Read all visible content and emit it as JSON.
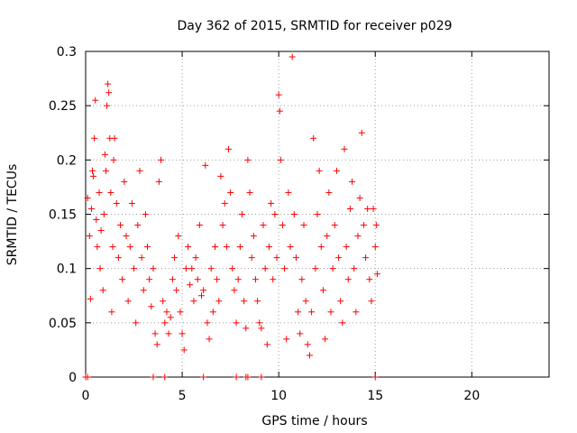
{
  "chart_data": {
    "type": "scatter",
    "title": "Day 362 of 2015, SRMTID for receiver p029",
    "xlabel": "GPS time / hours",
    "ylabel": "SRMTID / TECUs",
    "xlim": [
      0,
      24
    ],
    "ylim": [
      0,
      0.3
    ],
    "xticks": [
      0,
      5,
      10,
      15,
      20
    ],
    "yticks": [
      0,
      0.05,
      0.1,
      0.15,
      0.2,
      0.25,
      0.3
    ],
    "xtick_labels": [
      "0",
      "5",
      "10",
      "15",
      "20"
    ],
    "ytick_labels": [
      "0",
      "0.05",
      "0.1",
      "0.15",
      "0.2",
      "0.25",
      "0.3"
    ],
    "grid": true,
    "marker": "+",
    "series_color": "#ff0000",
    "x_data_range": [
      0,
      15.1
    ],
    "zero_value_x": [
      0.0,
      0.1,
      3.5,
      4.1,
      6.1,
      7.8,
      8.3,
      8.4,
      9.1,
      15.0
    ],
    "series": [
      {
        "name": "p029",
        "points": [
          [
            0.1,
            0.165
          ],
          [
            0.2,
            0.13
          ],
          [
            0.25,
            0.072
          ],
          [
            0.3,
            0.155
          ],
          [
            0.35,
            0.19
          ],
          [
            0.4,
            0.185
          ],
          [
            0.45,
            0.22
          ],
          [
            0.5,
            0.255
          ],
          [
            0.55,
            0.145
          ],
          [
            0.6,
            0.12
          ],
          [
            0.7,
            0.17
          ],
          [
            0.75,
            0.1
          ],
          [
            0.8,
            0.135
          ],
          [
            0.9,
            0.08
          ],
          [
            0.95,
            0.15
          ],
          [
            1.0,
            0.205
          ],
          [
            1.05,
            0.19
          ],
          [
            1.1,
            0.25
          ],
          [
            1.15,
            0.27
          ],
          [
            1.2,
            0.262
          ],
          [
            1.25,
            0.22
          ],
          [
            1.3,
            0.17
          ],
          [
            1.35,
            0.06
          ],
          [
            1.4,
            0.12
          ],
          [
            1.45,
            0.2
          ],
          [
            1.5,
            0.22
          ],
          [
            1.6,
            0.16
          ],
          [
            1.7,
            0.11
          ],
          [
            1.8,
            0.14
          ],
          [
            1.9,
            0.09
          ],
          [
            2.0,
            0.18
          ],
          [
            2.1,
            0.13
          ],
          [
            2.2,
            0.07
          ],
          [
            2.3,
            0.12
          ],
          [
            2.4,
            0.16
          ],
          [
            2.5,
            0.1
          ],
          [
            2.6,
            0.05
          ],
          [
            2.7,
            0.14
          ],
          [
            2.8,
            0.19
          ],
          [
            2.9,
            0.11
          ],
          [
            3.0,
            0.08
          ],
          [
            3.1,
            0.15
          ],
          [
            3.2,
            0.12
          ],
          [
            3.3,
            0.09
          ],
          [
            3.4,
            0.065
          ],
          [
            3.5,
            0.1
          ],
          [
            3.6,
            0.04
          ],
          [
            3.7,
            0.03
          ],
          [
            3.8,
            0.18
          ],
          [
            3.9,
            0.2
          ],
          [
            4.0,
            0.07
          ],
          [
            4.1,
            0.05
          ],
          [
            4.2,
            0.06
          ],
          [
            4.3,
            0.04
          ],
          [
            4.4,
            0.055
          ],
          [
            4.5,
            0.09
          ],
          [
            4.6,
            0.11
          ],
          [
            4.7,
            0.08
          ],
          [
            4.8,
            0.13
          ],
          [
            4.9,
            0.06
          ],
          [
            5.0,
            0.04
          ],
          [
            5.1,
            0.025
          ],
          [
            5.2,
            0.1
          ],
          [
            5.3,
            0.12
          ],
          [
            5.4,
            0.085
          ],
          [
            5.5,
            0.1
          ],
          [
            5.6,
            0.07
          ],
          [
            5.7,
            0.11
          ],
          [
            5.8,
            0.09
          ],
          [
            5.9,
            0.14
          ],
          [
            6.0,
            0.075
          ],
          [
            6.1,
            0.08
          ],
          [
            6.2,
            0.195
          ],
          [
            6.3,
            0.05
          ],
          [
            6.4,
            0.035
          ],
          [
            6.5,
            0.1
          ],
          [
            6.6,
            0.06
          ],
          [
            6.7,
            0.12
          ],
          [
            6.8,
            0.09
          ],
          [
            6.9,
            0.07
          ],
          [
            7.0,
            0.185
          ],
          [
            7.1,
            0.14
          ],
          [
            7.2,
            0.16
          ],
          [
            7.3,
            0.12
          ],
          [
            7.4,
            0.21
          ],
          [
            7.5,
            0.17
          ],
          [
            7.6,
            0.1
          ],
          [
            7.7,
            0.08
          ],
          [
            7.8,
            0.05
          ],
          [
            7.9,
            0.09
          ],
          [
            8.0,
            0.12
          ],
          [
            8.1,
            0.15
          ],
          [
            8.2,
            0.07
          ],
          [
            8.3,
            0.045
          ],
          [
            8.4,
            0.2
          ],
          [
            8.5,
            0.17
          ],
          [
            8.6,
            0.11
          ],
          [
            8.7,
            0.13
          ],
          [
            8.8,
            0.09
          ],
          [
            8.9,
            0.07
          ],
          [
            9.0,
            0.05
          ],
          [
            9.1,
            0.045
          ],
          [
            9.2,
            0.14
          ],
          [
            9.3,
            0.1
          ],
          [
            9.4,
            0.03
          ],
          [
            9.5,
            0.12
          ],
          [
            9.6,
            0.16
          ],
          [
            9.7,
            0.09
          ],
          [
            9.8,
            0.15
          ],
          [
            9.9,
            0.11
          ],
          [
            10.0,
            0.26
          ],
          [
            10.05,
            0.245
          ],
          [
            10.1,
            0.2
          ],
          [
            10.2,
            0.14
          ],
          [
            10.3,
            0.1
          ],
          [
            10.4,
            0.035
          ],
          [
            10.5,
            0.17
          ],
          [
            10.6,
            0.12
          ],
          [
            10.7,
            0.295
          ],
          [
            10.8,
            0.15
          ],
          [
            10.9,
            0.11
          ],
          [
            11.0,
            0.06
          ],
          [
            11.1,
            0.04
          ],
          [
            11.2,
            0.09
          ],
          [
            11.3,
            0.14
          ],
          [
            11.4,
            0.07
          ],
          [
            11.5,
            0.03
          ],
          [
            11.6,
            0.02
          ],
          [
            11.7,
            0.06
          ],
          [
            11.8,
            0.22
          ],
          [
            11.9,
            0.1
          ],
          [
            12.0,
            0.15
          ],
          [
            12.1,
            0.19
          ],
          [
            12.2,
            0.12
          ],
          [
            12.3,
            0.08
          ],
          [
            12.4,
            0.035
          ],
          [
            12.5,
            0.13
          ],
          [
            12.6,
            0.17
          ],
          [
            12.7,
            0.06
          ],
          [
            12.8,
            0.1
          ],
          [
            12.9,
            0.14
          ],
          [
            13.0,
            0.19
          ],
          [
            13.1,
            0.11
          ],
          [
            13.2,
            0.07
          ],
          [
            13.3,
            0.05
          ],
          [
            13.4,
            0.21
          ],
          [
            13.5,
            0.12
          ],
          [
            13.6,
            0.09
          ],
          [
            13.7,
            0.155
          ],
          [
            13.8,
            0.18
          ],
          [
            13.9,
            0.1
          ],
          [
            14.0,
            0.06
          ],
          [
            14.1,
            0.13
          ],
          [
            14.2,
            0.165
          ],
          [
            14.3,
            0.225
          ],
          [
            14.4,
            0.14
          ],
          [
            14.5,
            0.11
          ],
          [
            14.6,
            0.155
          ],
          [
            14.7,
            0.09
          ],
          [
            14.8,
            0.07
          ],
          [
            14.9,
            0.155
          ],
          [
            15.0,
            0.12
          ],
          [
            15.05,
            0.14
          ],
          [
            15.1,
            0.095
          ]
        ]
      }
    ]
  }
}
